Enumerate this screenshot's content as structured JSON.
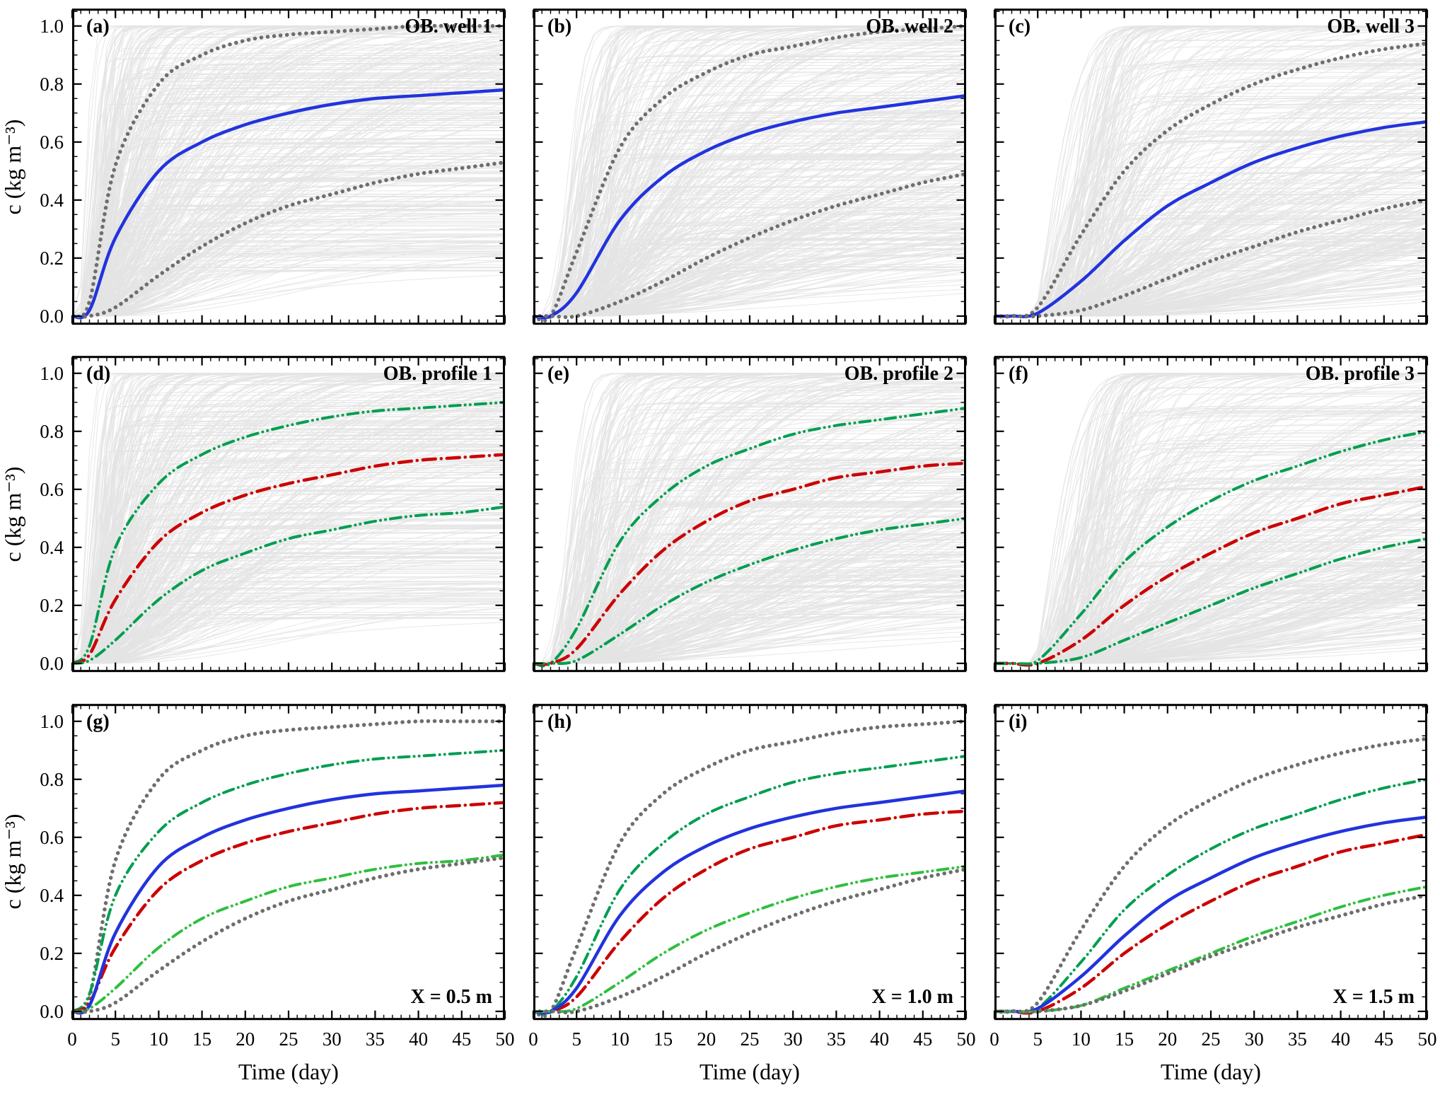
{
  "figure": {
    "background": "#ffffff",
    "frame_color": "#000000",
    "ensemble_color": "#e4e4e4",
    "mean_color": "#2233dd",
    "median_color": "#cc0000",
    "green_bound_color": "#009e50",
    "gray_bound_color": "#6e6e6e"
  },
  "axes": {
    "x": {
      "label": "Time (day)",
      "min": 0,
      "max": 50,
      "major": 5,
      "minor": 1,
      "tick_labels": [
        "0",
        "5",
        "10",
        "15",
        "20",
        "25",
        "30",
        "35",
        "40",
        "45",
        "50"
      ]
    },
    "y": {
      "label": "c (kg m⁻³)",
      "min": -0.03,
      "max": 1.06,
      "major": 0.2,
      "minor": 0.05,
      "tick_labels": [
        "0.0",
        "0.2",
        "0.4",
        "0.6",
        "0.8",
        "1.0"
      ]
    }
  },
  "chart_data": [
    {
      "id": "a",
      "panel_label": "(a)",
      "title": "OB. well 1",
      "type": "line",
      "x": [
        0,
        2,
        5,
        10,
        15,
        20,
        25,
        30,
        35,
        40,
        45,
        50
      ],
      "ensemble": {
        "count": 380,
        "color": "#e4e4e4",
        "label": "Monte Carlo realizations"
      },
      "series": [
        {
          "name": "upper uncertainty bound",
          "style": "dotted",
          "color": "#6e6e6e",
          "values": [
            0,
            0.05,
            0.52,
            0.8,
            0.9,
            0.95,
            0.97,
            0.98,
            0.99,
            1.0,
            1.0,
            1.0
          ]
        },
        {
          "name": "ensemble mean",
          "style": "solid",
          "color": "#2233dd",
          "values": [
            0,
            0.02,
            0.27,
            0.5,
            0.6,
            0.66,
            0.7,
            0.73,
            0.75,
            0.76,
            0.77,
            0.78
          ]
        },
        {
          "name": "lower uncertainty bound",
          "style": "dotted",
          "color": "#6e6e6e",
          "values": [
            0,
            0,
            0.03,
            0.14,
            0.24,
            0.32,
            0.38,
            0.42,
            0.46,
            0.49,
            0.51,
            0.53
          ]
        }
      ]
    },
    {
      "id": "b",
      "panel_label": "(b)",
      "title": "OB. well 2",
      "type": "line",
      "x": [
        0,
        2,
        5,
        10,
        15,
        20,
        25,
        30,
        35,
        40,
        45,
        50
      ],
      "ensemble": {
        "count": 380,
        "color": "#e4e4e4",
        "label": "Monte Carlo realizations"
      },
      "series": [
        {
          "name": "upper uncertainty bound",
          "style": "dotted",
          "color": "#6e6e6e",
          "values": [
            0,
            0,
            0.22,
            0.58,
            0.75,
            0.84,
            0.9,
            0.93,
            0.96,
            0.98,
            0.99,
            1.0
          ]
        },
        {
          "name": "ensemble mean",
          "style": "solid",
          "color": "#2233dd",
          "values": [
            0,
            0,
            0.08,
            0.33,
            0.48,
            0.57,
            0.63,
            0.67,
            0.7,
            0.72,
            0.74,
            0.76
          ]
        },
        {
          "name": "lower uncertainty bound",
          "style": "dotted",
          "color": "#6e6e6e",
          "values": [
            0,
            0,
            0,
            0.05,
            0.12,
            0.2,
            0.27,
            0.33,
            0.38,
            0.42,
            0.46,
            0.49
          ]
        }
      ]
    },
    {
      "id": "c",
      "panel_label": "(c)",
      "title": "OB. well 3",
      "type": "line",
      "x": [
        0,
        2,
        5,
        10,
        15,
        20,
        25,
        30,
        35,
        40,
        45,
        50
      ],
      "ensemble": {
        "count": 380,
        "color": "#e4e4e4",
        "label": "Monte Carlo realizations"
      },
      "series": [
        {
          "name": "upper uncertainty bound",
          "style": "dotted",
          "color": "#6e6e6e",
          "values": [
            0,
            0,
            0.03,
            0.28,
            0.5,
            0.64,
            0.73,
            0.8,
            0.85,
            0.89,
            0.92,
            0.94
          ]
        },
        {
          "name": "ensemble mean",
          "style": "solid",
          "color": "#2233dd",
          "values": [
            0,
            0,
            0.01,
            0.12,
            0.26,
            0.38,
            0.46,
            0.53,
            0.58,
            0.62,
            0.65,
            0.67
          ]
        },
        {
          "name": "lower uncertainty bound",
          "style": "dotted",
          "color": "#6e6e6e",
          "values": [
            0,
            0,
            0,
            0.02,
            0.07,
            0.13,
            0.19,
            0.24,
            0.29,
            0.33,
            0.37,
            0.4
          ]
        }
      ]
    },
    {
      "id": "d",
      "panel_label": "(d)",
      "title": "OB. profile 1",
      "type": "line",
      "x": [
        0,
        2,
        5,
        10,
        15,
        20,
        25,
        30,
        35,
        40,
        45,
        50
      ],
      "ensemble": {
        "count": 380,
        "color": "#e4e4e4",
        "label": "Monte Carlo realizations"
      },
      "series": [
        {
          "name": "upper green bound",
          "style": "dashdotdot",
          "color": "#009e50",
          "values": [
            0,
            0.06,
            0.4,
            0.62,
            0.72,
            0.78,
            0.82,
            0.85,
            0.87,
            0.88,
            0.89,
            0.9
          ]
        },
        {
          "name": "median",
          "style": "dashdot",
          "color": "#cc0000",
          "values": [
            0,
            0.03,
            0.22,
            0.42,
            0.52,
            0.58,
            0.62,
            0.65,
            0.68,
            0.7,
            0.71,
            0.72
          ]
        },
        {
          "name": "lower green bound",
          "style": "dashdotdot",
          "color": "#009e50",
          "values": [
            0,
            0.01,
            0.08,
            0.22,
            0.32,
            0.38,
            0.43,
            0.46,
            0.49,
            0.51,
            0.52,
            0.54
          ]
        }
      ]
    },
    {
      "id": "e",
      "panel_label": "(e)",
      "title": "OB. profile 2",
      "type": "line",
      "x": [
        0,
        2,
        5,
        10,
        15,
        20,
        25,
        30,
        35,
        40,
        45,
        50
      ],
      "ensemble": {
        "count": 380,
        "color": "#e4e4e4",
        "label": "Monte Carlo realizations"
      },
      "series": [
        {
          "name": "upper green bound",
          "style": "dashdotdot",
          "color": "#009e50",
          "values": [
            0,
            0,
            0.12,
            0.42,
            0.58,
            0.68,
            0.74,
            0.79,
            0.82,
            0.84,
            0.86,
            0.88
          ]
        },
        {
          "name": "median",
          "style": "dashdot",
          "color": "#cc0000",
          "values": [
            0,
            0,
            0.05,
            0.24,
            0.39,
            0.49,
            0.56,
            0.6,
            0.64,
            0.66,
            0.68,
            0.69
          ]
        },
        {
          "name": "lower green bound",
          "style": "dashdotdot",
          "color": "#009e50",
          "values": [
            0,
            0,
            0.01,
            0.1,
            0.2,
            0.28,
            0.34,
            0.39,
            0.43,
            0.46,
            0.48,
            0.5
          ]
        }
      ]
    },
    {
      "id": "f",
      "panel_label": "(f)",
      "title": "OB. profile 3",
      "type": "line",
      "x": [
        0,
        2,
        5,
        10,
        15,
        20,
        25,
        30,
        35,
        40,
        45,
        50
      ],
      "ensemble": {
        "count": 380,
        "color": "#e4e4e4",
        "label": "Monte Carlo realizations"
      },
      "series": [
        {
          "name": "upper green bound",
          "style": "dashdotdot",
          "color": "#009e50",
          "values": [
            0,
            0,
            0.01,
            0.17,
            0.35,
            0.47,
            0.56,
            0.63,
            0.68,
            0.73,
            0.77,
            0.8
          ]
        },
        {
          "name": "median",
          "style": "dashdot",
          "color": "#cc0000",
          "values": [
            0,
            0,
            0,
            0.08,
            0.2,
            0.3,
            0.38,
            0.45,
            0.5,
            0.55,
            0.58,
            0.61
          ]
        },
        {
          "name": "lower green bound",
          "style": "dashdotdot",
          "color": "#009e50",
          "values": [
            0,
            0,
            0,
            0.02,
            0.08,
            0.14,
            0.2,
            0.26,
            0.31,
            0.36,
            0.4,
            0.43
          ]
        }
      ]
    },
    {
      "id": "g",
      "panel_label": "(g)",
      "title": "X = 0.5 m",
      "type": "line",
      "x": [
        0,
        2,
        5,
        10,
        15,
        20,
        25,
        30,
        35,
        40,
        45,
        50
      ],
      "series": [
        {
          "name": "upper gray bound",
          "style": "dotted",
          "color": "#6e6e6e",
          "values": [
            0,
            0.05,
            0.52,
            0.8,
            0.9,
            0.95,
            0.97,
            0.98,
            0.99,
            1.0,
            1.0,
            1.0
          ]
        },
        {
          "name": "upper green bound",
          "style": "dashdotdot",
          "color": "#009e50",
          "values": [
            0,
            0.06,
            0.4,
            0.62,
            0.72,
            0.78,
            0.82,
            0.85,
            0.87,
            0.88,
            0.89,
            0.9
          ]
        },
        {
          "name": "median",
          "style": "dashdot",
          "color": "#cc0000",
          "values": [
            0,
            0.03,
            0.22,
            0.42,
            0.52,
            0.58,
            0.62,
            0.65,
            0.68,
            0.7,
            0.71,
            0.72
          ]
        },
        {
          "name": "mean",
          "style": "solid",
          "color": "#2233dd",
          "values": [
            0,
            0.02,
            0.27,
            0.5,
            0.6,
            0.66,
            0.7,
            0.73,
            0.75,
            0.76,
            0.77,
            0.78
          ]
        },
        {
          "name": "lower green bound",
          "style": "dashdotdot",
          "color": "#2fbf3f",
          "values": [
            0,
            0.01,
            0.08,
            0.22,
            0.32,
            0.38,
            0.43,
            0.46,
            0.49,
            0.51,
            0.52,
            0.54
          ]
        },
        {
          "name": "lower gray bound",
          "style": "dotted",
          "color": "#6e6e6e",
          "values": [
            0,
            0,
            0.03,
            0.14,
            0.24,
            0.32,
            0.38,
            0.42,
            0.46,
            0.49,
            0.51,
            0.53
          ]
        }
      ]
    },
    {
      "id": "h",
      "panel_label": "(h)",
      "title": "X = 1.0 m",
      "type": "line",
      "x": [
        0,
        2,
        5,
        10,
        15,
        20,
        25,
        30,
        35,
        40,
        45,
        50
      ],
      "series": [
        {
          "name": "upper gray bound",
          "style": "dotted",
          "color": "#6e6e6e",
          "values": [
            0,
            0,
            0.22,
            0.58,
            0.75,
            0.84,
            0.9,
            0.93,
            0.96,
            0.98,
            0.99,
            1.0
          ]
        },
        {
          "name": "upper green bound",
          "style": "dashdotdot",
          "color": "#009e50",
          "values": [
            0,
            0,
            0.12,
            0.42,
            0.58,
            0.68,
            0.74,
            0.79,
            0.82,
            0.84,
            0.86,
            0.88
          ]
        },
        {
          "name": "median",
          "style": "dashdot",
          "color": "#cc0000",
          "values": [
            0,
            0,
            0.05,
            0.24,
            0.39,
            0.49,
            0.56,
            0.6,
            0.64,
            0.66,
            0.68,
            0.69
          ]
        },
        {
          "name": "mean",
          "style": "solid",
          "color": "#2233dd",
          "values": [
            0,
            0,
            0.08,
            0.33,
            0.48,
            0.57,
            0.63,
            0.67,
            0.7,
            0.72,
            0.74,
            0.76
          ]
        },
        {
          "name": "lower green bound",
          "style": "dashdotdot",
          "color": "#2fbf3f",
          "values": [
            0,
            0,
            0.01,
            0.1,
            0.2,
            0.28,
            0.34,
            0.39,
            0.43,
            0.46,
            0.48,
            0.5
          ]
        },
        {
          "name": "lower gray bound",
          "style": "dotted",
          "color": "#6e6e6e",
          "values": [
            0,
            0,
            0,
            0.05,
            0.12,
            0.2,
            0.27,
            0.33,
            0.38,
            0.42,
            0.46,
            0.49
          ]
        }
      ]
    },
    {
      "id": "i",
      "panel_label": "(i)",
      "title": "X = 1.5 m",
      "type": "line",
      "x": [
        0,
        2,
        5,
        10,
        15,
        20,
        25,
        30,
        35,
        40,
        45,
        50
      ],
      "series": [
        {
          "name": "upper gray bound",
          "style": "dotted",
          "color": "#6e6e6e",
          "values": [
            0,
            0,
            0.03,
            0.28,
            0.5,
            0.64,
            0.73,
            0.8,
            0.85,
            0.89,
            0.92,
            0.94
          ]
        },
        {
          "name": "upper green bound",
          "style": "dashdotdot",
          "color": "#009e50",
          "values": [
            0,
            0,
            0.01,
            0.17,
            0.35,
            0.47,
            0.56,
            0.63,
            0.68,
            0.73,
            0.77,
            0.8
          ]
        },
        {
          "name": "median",
          "style": "dashdot",
          "color": "#cc0000",
          "values": [
            0,
            0,
            0,
            0.08,
            0.2,
            0.3,
            0.38,
            0.45,
            0.5,
            0.55,
            0.58,
            0.61
          ]
        },
        {
          "name": "mean",
          "style": "solid",
          "color": "#2233dd",
          "values": [
            0,
            0,
            0.01,
            0.12,
            0.26,
            0.38,
            0.46,
            0.53,
            0.58,
            0.62,
            0.65,
            0.67
          ]
        },
        {
          "name": "lower green bound",
          "style": "dashdotdot",
          "color": "#2fbf3f",
          "values": [
            0,
            0,
            0,
            0.02,
            0.08,
            0.14,
            0.2,
            0.26,
            0.31,
            0.36,
            0.4,
            0.43
          ]
        },
        {
          "name": "lower gray bound",
          "style": "dotted",
          "color": "#6e6e6e",
          "values": [
            0,
            0,
            0,
            0.02,
            0.07,
            0.13,
            0.19,
            0.24,
            0.29,
            0.33,
            0.37,
            0.4
          ]
        }
      ]
    }
  ]
}
